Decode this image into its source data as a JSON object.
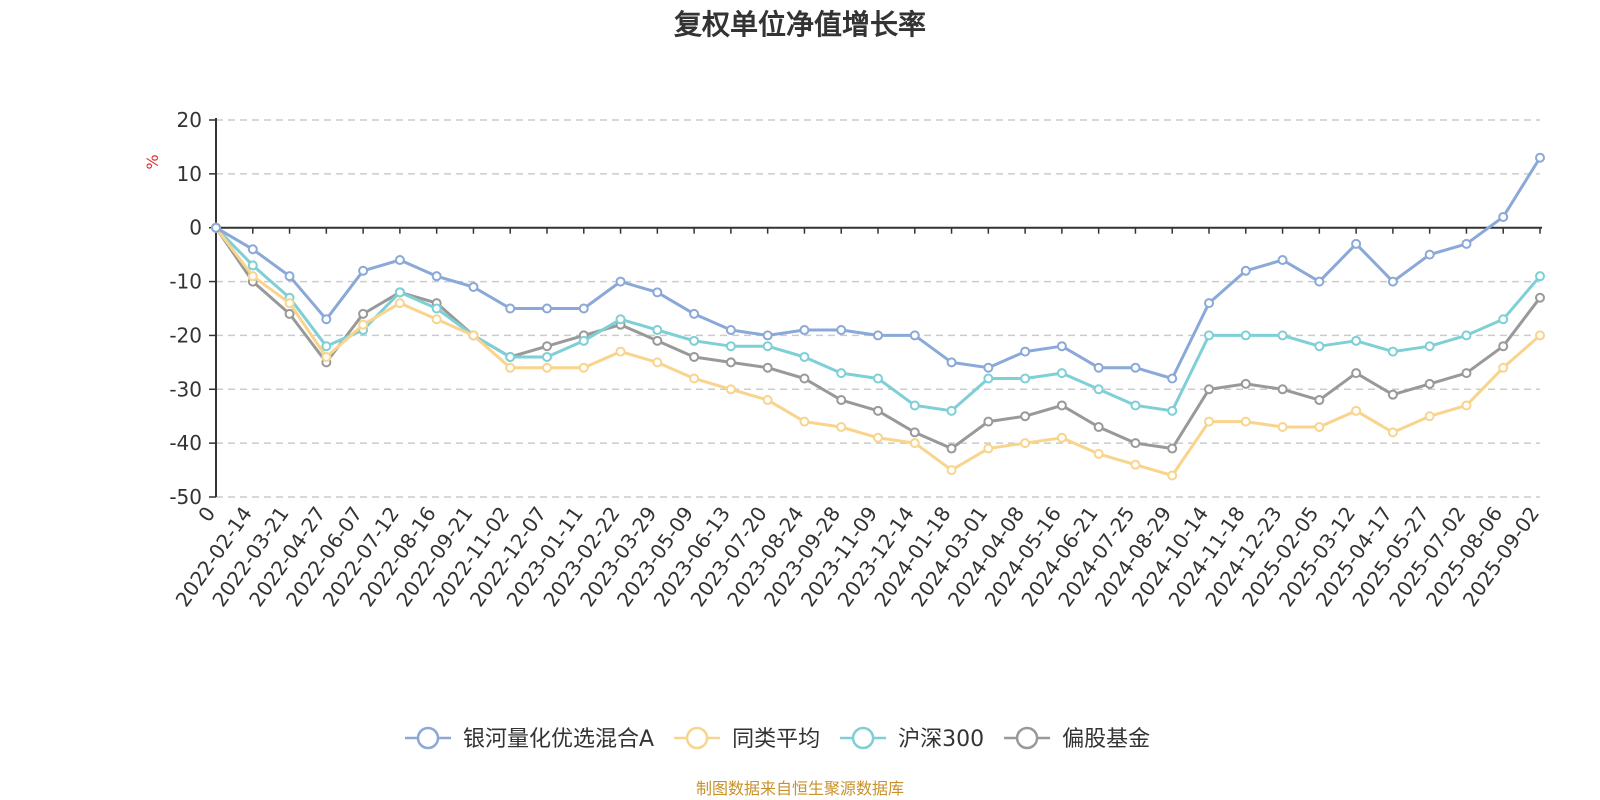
{
  "chart_data": {
    "type": "line",
    "title": "复权单位净值增长率",
    "ylabel": "%",
    "ylim": [
      -50,
      20
    ],
    "yticks": [
      20,
      10,
      0,
      -10,
      -20,
      -30,
      -40,
      -50
    ],
    "grid": true,
    "legend_position": "bottom",
    "x": [
      "0",
      "2022-02-14",
      "2022-03-21",
      "2022-04-27",
      "2022-06-07",
      "2022-07-12",
      "2022-08-16",
      "2022-09-21",
      "2022-11-02",
      "2022-12-07",
      "2023-01-11",
      "2023-02-22",
      "2023-03-29",
      "2023-05-09",
      "2023-06-13",
      "2023-07-20",
      "2023-08-24",
      "2023-09-28",
      "2023-11-09",
      "2023-12-14",
      "2024-01-18",
      "2024-03-01",
      "2024-04-08",
      "2024-05-16",
      "2024-06-21",
      "2024-07-25",
      "2024-08-29",
      "2024-10-14",
      "2024-11-18",
      "2024-12-23",
      "2025-02-05",
      "2025-03-12",
      "2025-04-17",
      "2025-05-27",
      "2025-07-02",
      "2025-08-06",
      "2025-09-02"
    ],
    "series": [
      {
        "name": "银河量化优选混合A",
        "color": "#8aa8d8",
        "values": [
          0,
          -4,
          -9,
          -17,
          -8,
          -6,
          -9,
          -11,
          -15,
          -15,
          -15,
          -10,
          -12,
          -16,
          -19,
          -20,
          -19,
          -19,
          -20,
          -20,
          -25,
          -26,
          -23,
          -22,
          -26,
          -26,
          -28,
          -14,
          -8,
          -6,
          -10,
          -3,
          -10,
          -5,
          -3,
          2,
          13
        ]
      },
      {
        "name": "同类平均",
        "color": "#f8d48c",
        "values": [
          0,
          -9,
          -14,
          -24,
          -18,
          -14,
          -17,
          -20,
          -26,
          -26,
          -26,
          -23,
          -25,
          -28,
          -30,
          -32,
          -36,
          -37,
          -39,
          -40,
          -45,
          -41,
          -40,
          -39,
          -42,
          -44,
          -46,
          -36,
          -36,
          -37,
          -37,
          -34,
          -38,
          -35,
          -33,
          -26,
          -20
        ]
      },
      {
        "name": "沪深300",
        "color": "#7ecfd6",
        "values": [
          0,
          -7,
          -13,
          -22,
          -19,
          -12,
          -15,
          -20,
          -24,
          -24,
          -21,
          -17,
          -19,
          -21,
          -22,
          -22,
          -24,
          -27,
          -28,
          -33,
          -34,
          -28,
          -28,
          -27,
          -30,
          -33,
          -34,
          -20,
          -20,
          -20,
          -22,
          -21,
          -23,
          -22,
          -20,
          -17,
          -9
        ]
      },
      {
        "name": "偏股基金",
        "color": "#999999",
        "values": [
          0,
          -10,
          -16,
          -25,
          -16,
          -12,
          -14,
          -20,
          -24,
          -22,
          -20,
          -18,
          -21,
          -24,
          -25,
          -26,
          -28,
          -32,
          -34,
          -38,
          -41,
          -36,
          -35,
          -33,
          -37,
          -40,
          -41,
          -30,
          -29,
          -30,
          -32,
          -27,
          -31,
          -29,
          -27,
          -22,
          -13
        ]
      }
    ]
  },
  "source_text": "制图数据来自恒生聚源数据库"
}
